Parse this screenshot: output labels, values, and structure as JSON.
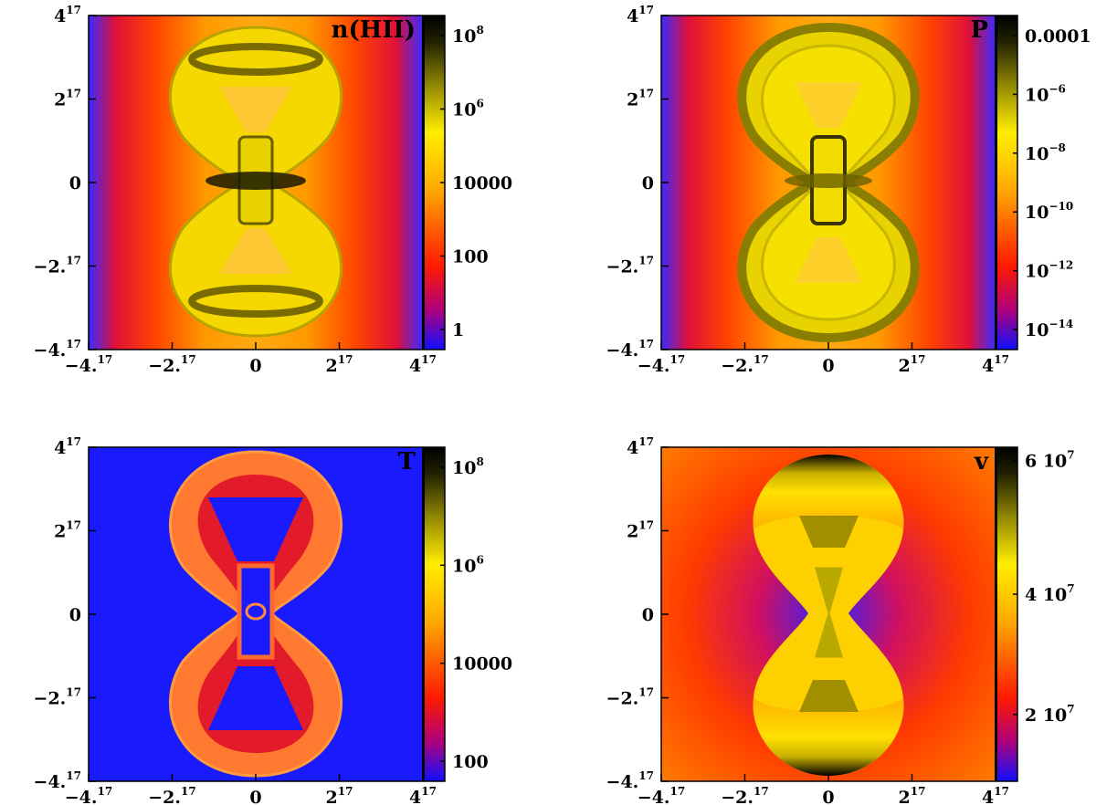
{
  "figure": {
    "axis_ticks": [
      {
        "mant": "−4.",
        "exp": "17"
      },
      {
        "mant": "−2.",
        "exp": "17"
      },
      {
        "mant": "0",
        "exp": ""
      },
      {
        "mant": "2",
        "exp": "17"
      },
      {
        "mant": "4",
        "exp": "17"
      }
    ],
    "panels": [
      {
        "id": "nhii",
        "title": "n(HII)",
        "scale": "log",
        "colorbar_ticks": [
          {
            "mant": "10",
            "exp": "8"
          },
          {
            "mant": "10",
            "exp": "6"
          },
          {
            "mant": "10000",
            "exp": ""
          },
          {
            "mant": "100",
            "exp": ""
          },
          {
            "mant": "1",
            "exp": ""
          }
        ]
      },
      {
        "id": "p",
        "title": "P",
        "scale": "log",
        "colorbar_ticks": [
          {
            "mant": "0.0001",
            "exp": ""
          },
          {
            "mant": "10",
            "exp": "−6"
          },
          {
            "mant": "10",
            "exp": "−8"
          },
          {
            "mant": "10",
            "exp": "−10"
          },
          {
            "mant": "10",
            "exp": "−12"
          },
          {
            "mant": "10",
            "exp": "−14"
          }
        ]
      },
      {
        "id": "t",
        "title": "T",
        "scale": "log",
        "colorbar_ticks": [
          {
            "mant": "10",
            "exp": "8"
          },
          {
            "mant": "10",
            "exp": "6"
          },
          {
            "mant": "10000",
            "exp": ""
          },
          {
            "mant": "100",
            "exp": ""
          }
        ]
      },
      {
        "id": "v",
        "title": "v",
        "scale": "linear",
        "colorbar_ticks": [
          {
            "mant": "6 10",
            "exp": "7"
          },
          {
            "mant": "4 10",
            "exp": "7"
          },
          {
            "mant": "2 10",
            "exp": "7"
          }
        ]
      }
    ],
    "colormap": [
      "#1a1aff",
      "#ff0000",
      "#ff9900",
      "#ffee00",
      "#000000"
    ]
  },
  "chart_data": [
    {
      "type": "heatmap",
      "title": "n(HII)",
      "x_range": [
        -4e+17,
        4e+17
      ],
      "y_range": [
        -4e+17,
        4e+17
      ],
      "x_ticks": [
        -4e+17,
        -2e+17,
        0,
        2e+17,
        4e+17
      ],
      "y_ticks": [
        -4e+17,
        -2e+17,
        0,
        2e+17,
        4e+17
      ],
      "colorbar": {
        "scale": "log",
        "ticks": [
          100000000.0,
          1000000.0,
          10000,
          100,
          1
        ]
      },
      "structure": "hourglass bipolar nebula"
    },
    {
      "type": "heatmap",
      "title": "P",
      "x_range": [
        -4e+17,
        4e+17
      ],
      "y_range": [
        -4e+17,
        4e+17
      ],
      "x_ticks": [
        -4e+17,
        -2e+17,
        0,
        2e+17,
        4e+17
      ],
      "y_ticks": [
        -4e+17,
        -2e+17,
        0,
        2e+17,
        4e+17
      ],
      "colorbar": {
        "scale": "log",
        "ticks": [
          0.0001,
          1e-06,
          1e-08,
          1e-10,
          1e-12,
          1e-14
        ]
      },
      "structure": "hourglass bipolar nebula"
    },
    {
      "type": "heatmap",
      "title": "T",
      "x_range": [
        -4e+17,
        4e+17
      ],
      "y_range": [
        -4e+17,
        4e+17
      ],
      "x_ticks": [
        -4e+17,
        -2e+17,
        0,
        2e+17,
        4e+17
      ],
      "y_ticks": [
        -4e+17,
        -2e+17,
        0,
        2e+17,
        4e+17
      ],
      "colorbar": {
        "scale": "log",
        "ticks": [
          100000000.0,
          1000000.0,
          10000,
          100
        ]
      },
      "structure": "hourglass bipolar nebula"
    },
    {
      "type": "heatmap",
      "title": "v",
      "x_range": [
        -4e+17,
        4e+17
      ],
      "y_range": [
        -4e+17,
        4e+17
      ],
      "x_ticks": [
        -4e+17,
        -2e+17,
        0,
        2e+17,
        4e+17
      ],
      "y_ticks": [
        -4e+17,
        -2e+17,
        0,
        2e+17,
        4e+17
      ],
      "colorbar": {
        "scale": "linear",
        "ticks": [
          60000000.0,
          40000000.0,
          20000000.0
        ]
      },
      "structure": "hourglass bipolar nebula"
    }
  ]
}
